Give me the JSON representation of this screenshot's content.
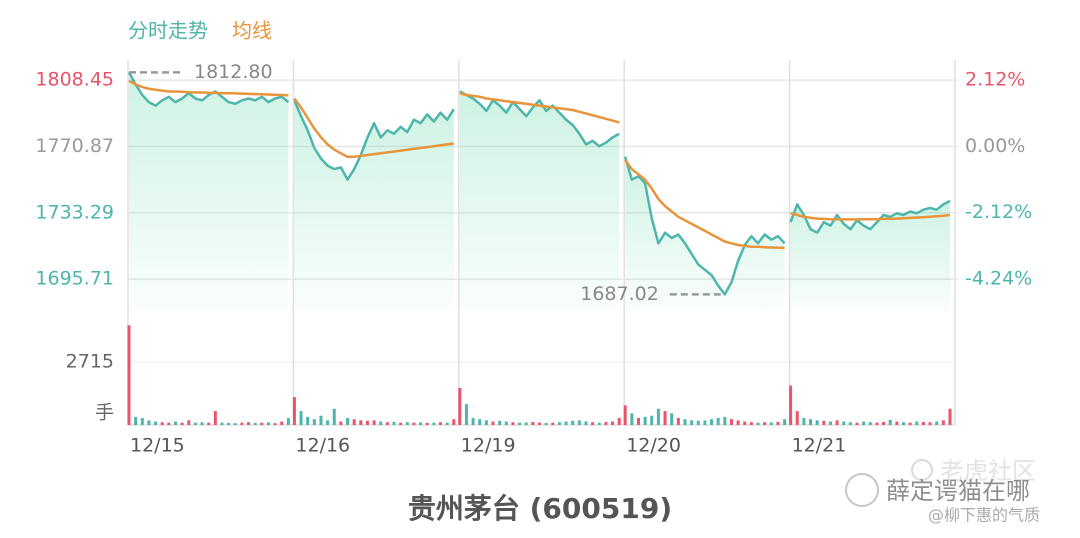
{
  "chart_data": {
    "type": "line",
    "title": "贵州茅台 (600519)",
    "legend": [
      {
        "name": "分时走势",
        "color": "#4db6ac"
      },
      {
        "name": "均线",
        "color": "#e8943a"
      }
    ],
    "up_color": "#e8546a",
    "down_color": "#4db6ac",
    "neutral_color": "#999999",
    "ylim": [
      1678.2,
      1817
    ],
    "yticks": [
      1808.45,
      1770.87,
      1733.29,
      1695.71
    ],
    "y2lim": [
      -5.233,
      2.605
    ],
    "y2ticks": [
      {
        "value": 2.12,
        "label": "2.12%"
      },
      {
        "value": 0,
        "label": "0.00%"
      },
      {
        "value": -2.12,
        "label": "-2.12%"
      },
      {
        "value": -4.24,
        "label": "-4.24%"
      }
    ],
    "volume_ylim": [
      0,
      4310
    ],
    "volume_yticks": [
      2715
    ],
    "volume_unit": "手",
    "max": {
      "value": 1812.8,
      "label": "1812.80"
    },
    "min": {
      "value": 1687.02,
      "label": "1687.02"
    },
    "grid": true,
    "days": [
      {
        "label": "12/15",
        "price": [
          1812.8,
          1806,
          1800,
          1796,
          1794,
          1797,
          1799,
          1796,
          1798,
          1801,
          1798,
          1797,
          1800,
          1802,
          1799,
          1796,
          1795,
          1797,
          1798,
          1797,
          1799,
          1796,
          1798,
          1799,
          1796
        ],
        "avg": [
          1808,
          1806,
          1804.5,
          1803.5,
          1803,
          1802.5,
          1802,
          1802,
          1801.8,
          1801.6,
          1801.5,
          1801.4,
          1801.3,
          1801.2,
          1801.1,
          1801,
          1800.9,
          1800.8,
          1800.6,
          1800.5,
          1800.4,
          1800.3,
          1800.2,
          1800,
          1799.8
        ],
        "volume": [
          4300,
          350,
          300,
          200,
          150,
          120,
          100,
          150,
          100,
          200,
          100,
          120,
          100,
          600,
          100,
          90,
          80,
          100,
          120,
          90,
          100,
          110,
          80,
          150,
          300
        ]
      },
      {
        "label": "12/16",
        "price": [
          1797,
          1788,
          1780,
          1770,
          1764,
          1760,
          1758,
          1759,
          1752,
          1758,
          1766,
          1776,
          1784,
          1776,
          1780,
          1778,
          1782,
          1779,
          1786,
          1784,
          1789,
          1785,
          1790,
          1786,
          1792
        ],
        "avg": [
          1798,
          1793,
          1787,
          1781,
          1776,
          1772,
          1769,
          1767,
          1765,
          1765,
          1765.5,
          1766,
          1766.5,
          1767,
          1767.5,
          1768,
          1768.5,
          1769,
          1769.5,
          1770,
          1770.5,
          1771,
          1771.5,
          1772,
          1772.5
        ],
        "volume": [
          1200,
          600,
          350,
          250,
          400,
          200,
          700,
          150,
          300,
          250,
          200,
          180,
          200,
          150,
          120,
          130,
          100,
          120,
          100,
          110,
          90,
          100,
          120,
          100,
          250
        ]
      },
      {
        "label": "12/19",
        "price": [
          1802,
          1800,
          1798,
          1795,
          1791,
          1797,
          1794,
          1790,
          1796,
          1792,
          1788,
          1793,
          1797,
          1791,
          1794,
          1790,
          1786,
          1783,
          1778,
          1772,
          1774,
          1771,
          1773,
          1776,
          1778
        ],
        "avg": [
          1801,
          1800,
          1799.5,
          1799,
          1798,
          1797.5,
          1797,
          1796.5,
          1796,
          1795.5,
          1795,
          1794.5,
          1794,
          1793.5,
          1793,
          1792.5,
          1792,
          1791.5,
          1790.5,
          1789.5,
          1788.5,
          1787.5,
          1786.5,
          1785.5,
          1784.5
        ],
        "volume": [
          1600,
          900,
          300,
          250,
          200,
          150,
          180,
          150,
          120,
          100,
          110,
          130,
          100,
          90,
          100,
          120,
          150,
          180,
          200,
          150,
          120,
          100,
          130,
          150,
          300
        ]
      },
      {
        "label": "12/20",
        "price": [
          1765,
          1752,
          1754,
          1750,
          1730,
          1716,
          1722,
          1719,
          1721,
          1716,
          1710,
          1704,
          1701,
          1698,
          1692,
          1687.02,
          1694,
          1706,
          1715,
          1720,
          1716,
          1721,
          1718,
          1720,
          1716
        ],
        "avg": [
          1763,
          1758,
          1755,
          1752,
          1747,
          1741,
          1737,
          1734,
          1731,
          1729,
          1727,
          1725,
          1723,
          1721,
          1719,
          1717,
          1716,
          1715,
          1714.5,
          1714,
          1714,
          1713.8,
          1713.6,
          1713.5,
          1713.4
        ],
        "volume": [
          850,
          500,
          300,
          350,
          400,
          700,
          600,
          500,
          300,
          250,
          200,
          180,
          200,
          250,
          300,
          350,
          250,
          200,
          150,
          120,
          100,
          120,
          110,
          130,
          250
        ]
      },
      {
        "label": "12/21",
        "price": [
          1728,
          1738,
          1732,
          1724,
          1722,
          1728,
          1726,
          1732,
          1727,
          1724,
          1729,
          1726,
          1724,
          1728,
          1732,
          1731,
          1733,
          1732,
          1734,
          1733,
          1735,
          1736,
          1735,
          1738,
          1740
        ],
        "avg": [
          1733,
          1732,
          1731,
          1730.5,
          1730,
          1729.8,
          1729.6,
          1729.5,
          1729.5,
          1729.5,
          1729.5,
          1729.6,
          1729.6,
          1729.7,
          1729.8,
          1729.9,
          1730,
          1730.2,
          1730.4,
          1730.6,
          1730.8,
          1731,
          1731.3,
          1731.6,
          1732
        ],
        "volume": [
          1700,
          600,
          300,
          250,
          200,
          180,
          150,
          200,
          150,
          120,
          100,
          150,
          120,
          100,
          130,
          220,
          150,
          120,
          100,
          150,
          130,
          120,
          150,
          200,
          700
        ]
      }
    ]
  },
  "watermark": {
    "site": "老虎社区",
    "account": "薛定谔猫在哪",
    "author": "@柳下惠的气质"
  }
}
